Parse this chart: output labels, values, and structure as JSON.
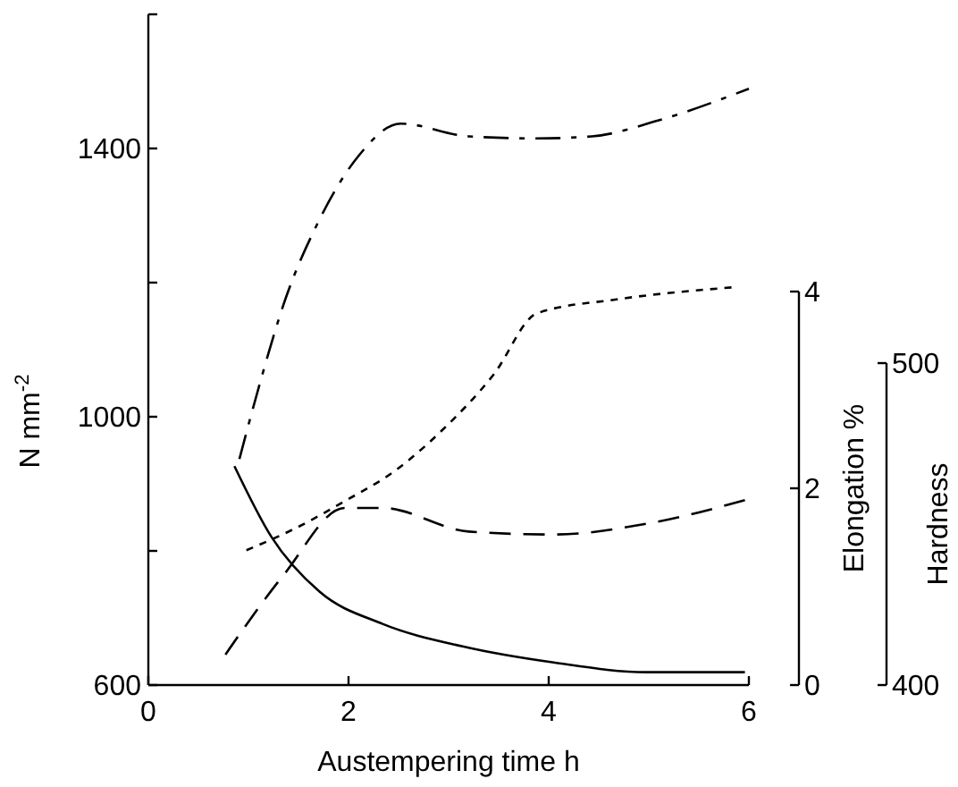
{
  "chart_data": {
    "type": "line",
    "xlabel": "Austempering time h",
    "ylabel": "N mm$^{-2}$",
    "y2label": "Elongation %",
    "y3label": "Hardness",
    "xlim": [
      0,
      6
    ],
    "xticks": [
      0,
      2,
      4,
      6
    ],
    "ylim": [
      600,
      1600
    ],
    "yticks": [
      600,
      {
        "value": 800,
        "label": null
      },
      1000,
      {
        "value": 1200,
        "label": null
      },
      1400,
      {
        "value": 1600,
        "label": null
      }
    ],
    "y2lim": [
      0,
      4
    ],
    "y2ticks": [
      0,
      2,
      4
    ],
    "y3lim": [
      400,
      500
    ],
    "y3ticks": [
      400,
      500
    ],
    "grid": false,
    "marker": "none",
    "series": [
      {
        "color": "#000000",
        "line_style": "dashdot",
        "x": [
          0.91,
          1.07,
          1.38,
          1.69,
          2.09,
          2.52,
          3.2,
          3.88,
          4.43,
          5.1,
          6.0
        ],
        "values": [
          937,
          1026,
          1180,
          1288,
          1387,
          1437,
          1418,
          1415,
          1418,
          1442,
          1489
        ]
      },
      {
        "color": "#000000",
        "line_style": "dotted",
        "x": [
          0.98,
          1.46,
          1.96,
          2.46,
          2.95,
          3.45,
          3.88,
          4.68,
          5.84
        ],
        "values": [
          801,
          833,
          874,
          919,
          982,
          1063,
          1154,
          1175,
          1193
        ]
      },
      {
        "color": "#000000",
        "line_style": "dashed",
        "axis": "y2",
        "x": [
          0.77,
          1.36,
          1.96,
          2.34,
          3.2,
          4.05,
          4.98,
          6.0
        ],
        "values": [
          0.31,
          1.13,
          1.8,
          1.8,
          1.56,
          1.53,
          1.64,
          1.89
        ]
      },
      {
        "color": "#000000",
        "line_style": "solid",
        "axis": "y3",
        "x": [
          0.86,
          1.23,
          1.71,
          2.34,
          3.14,
          4.05,
          4.98,
          5.96
        ],
        "values": [
          468,
          446,
          429,
          419,
          412,
          407,
          404,
          404
        ]
      }
    ]
  }
}
